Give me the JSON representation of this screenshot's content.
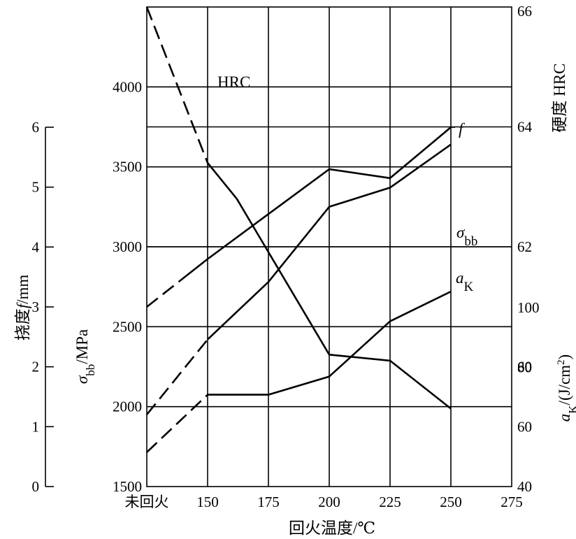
{
  "chart_data": {
    "type": "line",
    "title": "",
    "grid": true,
    "x": {
      "title": "回火温度/℃",
      "categories": [
        "未回火",
        "150",
        "175",
        "200",
        "225",
        "250",
        "275"
      ],
      "values": [
        125,
        150,
        175,
        200,
        225,
        250,
        275
      ],
      "range": [
        125,
        275
      ]
    },
    "axes": {
      "deflection": {
        "title_parts": [
          "挠度",
          "f",
          "/mm"
        ],
        "unit": "mm",
        "range": [
          0,
          6
        ],
        "ticks": [
          0,
          1,
          2,
          3,
          4,
          5,
          6
        ]
      },
      "bending_strength": {
        "title_parts": [
          "σ",
          "bb",
          "/MPa"
        ],
        "unit": "MPa",
        "range": [
          1500,
          4500
        ],
        "ticks": [
          1500,
          2000,
          2500,
          3000,
          3500,
          4000
        ]
      },
      "hardness": {
        "title": "硬度 HRC",
        "unit": "HRC",
        "range": [
          58,
          66
        ],
        "ticks": [
          60,
          62,
          64,
          66
        ]
      },
      "impact_toughness": {
        "title_parts": [
          "a",
          "K",
          "/(J/cm",
          "2",
          ")"
        ],
        "unit": "J/cm²",
        "range": [
          40,
          100
        ],
        "ticks": [
          40,
          60,
          80,
          100
        ]
      }
    },
    "series": [
      {
        "name": "HRC",
        "axis": "hardness",
        "dashed_to": 150,
        "points": [
          [
            125,
            66
          ],
          [
            150,
            63.4
          ],
          [
            162,
            62.8
          ],
          [
            200,
            60.2
          ],
          [
            225,
            60.1
          ],
          [
            250,
            59.3
          ]
        ]
      },
      {
        "name": "f",
        "axis": "deflection",
        "dashed_to": 140,
        "points": [
          [
            125,
            3.0
          ],
          [
            150,
            3.8
          ],
          [
            175,
            4.55
          ],
          [
            200,
            5.3
          ],
          [
            225,
            5.15
          ],
          [
            250,
            6.0
          ]
        ]
      },
      {
        "name_parts": [
          "σ",
          "bb"
        ],
        "axis": "bending_strength",
        "dashed_to": 150,
        "points": [
          [
            125,
            1950
          ],
          [
            150,
            2420
          ],
          [
            175,
            2780
          ],
          [
            200,
            3250
          ],
          [
            225,
            3370
          ],
          [
            250,
            3640
          ]
        ]
      },
      {
        "name_parts": [
          "a",
          "K"
        ],
        "axis": "impact_toughness",
        "dashed_to": 150,
        "points": [
          [
            125,
            51.5
          ],
          [
            150,
            70.8
          ],
          [
            175,
            70.8
          ],
          [
            200,
            76.9
          ],
          [
            225,
            95.4
          ],
          [
            250,
            105.4
          ]
        ]
      }
    ]
  }
}
